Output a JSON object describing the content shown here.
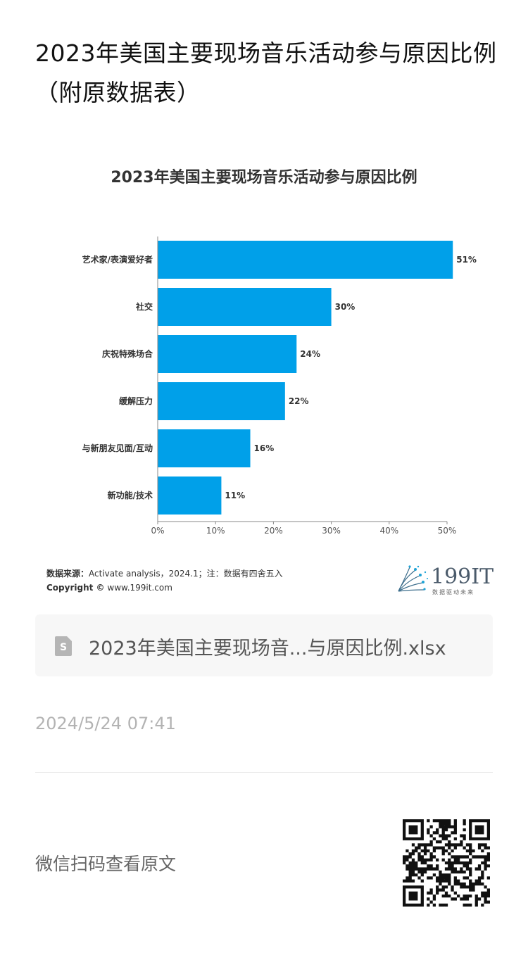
{
  "page": {
    "title": "2023年美国主要现场音乐活动参与原因比例（附原数据表）"
  },
  "chart_data": {
    "type": "bar",
    "orientation": "horizontal",
    "title": "2023年美国主要现场音乐活动参与原因比例",
    "categories": [
      "艺术家/表演爱好者",
      "社交",
      "庆祝特殊场合",
      "缓解压力",
      "与新朋友见面/互动",
      "新功能/技术"
    ],
    "values": [
      51,
      30,
      24,
      22,
      16,
      11
    ],
    "value_labels": [
      "51%",
      "30%",
      "24%",
      "22%",
      "16%",
      "11%"
    ],
    "xlim": [
      0,
      50
    ],
    "xticks": [
      "0%",
      "10%",
      "20%",
      "30%",
      "40%",
      "50%"
    ],
    "bar_color": "#00a0e9",
    "grid": false
  },
  "source": {
    "label": "数据来源：",
    "text": "Activate analysis，2024.1；注：数据有四舍五入",
    "copyright_label": "Copyright ©",
    "copyright_text": "www.199it.com"
  },
  "logo": {
    "text": "199IT",
    "subtitle": "数据驱动未来"
  },
  "file_card": {
    "file_name": "2023年美国主要现场音...与原因比例.xlsx",
    "icon": "spreadsheet-file-icon"
  },
  "timestamp": "2024/5/24 07:41",
  "qr": {
    "caption": "微信扫码查看原文",
    "icon": "qr-code-icon"
  }
}
